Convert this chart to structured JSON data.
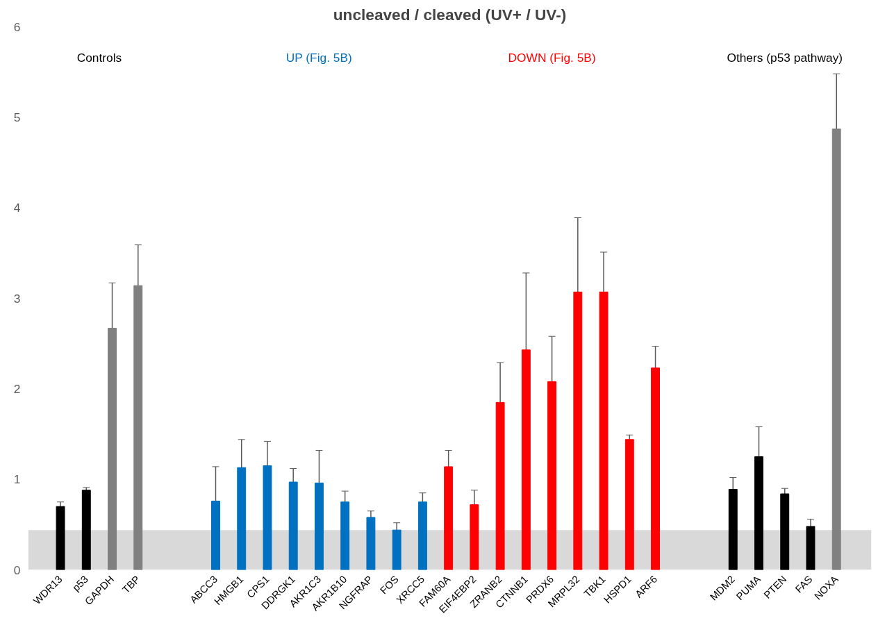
{
  "chart_data": {
    "type": "bar",
    "title": "uncleaved / cleaved (UV+ / UV-)",
    "categories": [
      "WDR13",
      "p53",
      "GAPDH",
      "TBP",
      null,
      null,
      "ABCC3",
      "HMGB1",
      "CPS1",
      "DDRGK1",
      "AKR1C3",
      "AKR1B10",
      "NGFRAP",
      "FOS",
      "XRCC5",
      "FAM60A",
      "EIF4EBP2",
      "ZRANB2",
      "CTNNB1",
      "PRDX6",
      "MRPL32",
      "TBK1",
      "HSPD1",
      "ARF6",
      null,
      null,
      "MDM2",
      "PUMA",
      "PTEN",
      "FAS",
      "NOXA"
    ],
    "values": [
      0.7,
      0.88,
      2.67,
      3.14,
      null,
      null,
      0.76,
      1.13,
      1.15,
      0.97,
      0.96,
      0.75,
      0.58,
      0.44,
      0.75,
      1.14,
      0.72,
      1.85,
      2.43,
      2.08,
      3.07,
      3.07,
      1.44,
      2.23,
      null,
      null,
      0.89,
      1.25,
      0.84,
      0.48,
      4.87
    ],
    "errors": [
      0.05,
      0.03,
      0.5,
      0.45,
      null,
      null,
      0.38,
      0.31,
      0.27,
      0.15,
      0.36,
      0.12,
      0.07,
      0.08,
      0.1,
      0.18,
      0.16,
      0.44,
      0.85,
      0.5,
      0.82,
      0.44,
      0.05,
      0.24,
      null,
      null,
      0.13,
      0.33,
      0.06,
      0.08,
      0.61
    ],
    "colors": [
      "#000000",
      "#000000",
      "#808080",
      "#808080",
      null,
      null,
      "#0070c0",
      "#0070c0",
      "#0070c0",
      "#0070c0",
      "#0070c0",
      "#0070c0",
      "#0070c0",
      "#0070c0",
      "#0070c0",
      "#ff0000",
      "#ff0000",
      "#ff0000",
      "#ff0000",
      "#ff0000",
      "#ff0000",
      "#ff0000",
      "#ff0000",
      "#ff0000",
      null,
      null,
      "#000000",
      "#000000",
      "#000000",
      "#000000",
      "#808080"
    ],
    "ylim": [
      0,
      6
    ],
    "yticks": [
      0,
      1,
      2,
      3,
      4,
      5,
      6
    ],
    "bands": [
      {
        "axis": "y",
        "from": 0,
        "to": 0.44,
        "color": "#d9d9d9"
      }
    ],
    "annotations": [
      "Controls",
      "UP (Fig. 5B)",
      "DOWN (Fig. 5B)",
      "Others (p53 pathway)"
    ],
    "grid": false
  }
}
